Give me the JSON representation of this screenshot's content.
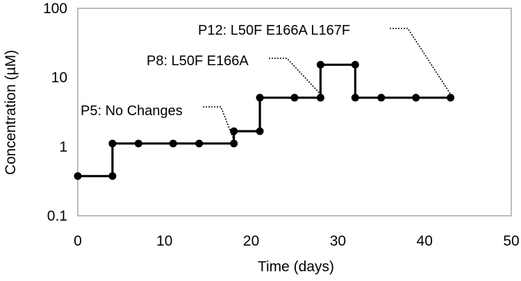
{
  "chart_data": {
    "type": "line",
    "step": true,
    "xlabel": "Time (days)",
    "ylabel": "Concentration (µM)",
    "xlim": [
      0,
      50
    ],
    "ylim": [
      0.1,
      100
    ],
    "yscale": "log",
    "grid": false,
    "xticks": [
      0,
      10,
      20,
      30,
      40,
      50
    ],
    "xtick_labels": [
      "0",
      "10",
      "20",
      "30",
      "40",
      "50"
    ],
    "yticks": [
      0.1,
      1,
      10,
      100
    ],
    "ytick_labels": [
      "0.1",
      "1",
      "10",
      "100"
    ],
    "line_color": "#000000",
    "series": [
      {
        "x": [
          0,
          4,
          4,
          7,
          11,
          14,
          18,
          18,
          21,
          21,
          25,
          28,
          28,
          32,
          32,
          35,
          39,
          43
        ],
        "y": [
          0.375,
          0.375,
          1.11,
          1.11,
          1.11,
          1.11,
          1.11,
          1.67,
          1.67,
          5.1,
          5.1,
          5.1,
          15.3,
          15.3,
          5.1,
          5.1,
          5.1,
          5.1
        ]
      }
    ],
    "annotations": [
      {
        "text": "P5: No Changes",
        "x": 18,
        "y": 1.11
      },
      {
        "text": "P8: L50F E166A",
        "x": 28,
        "y": 5.1
      },
      {
        "text": "P12: L50F E166A L167F",
        "x": 43,
        "y": 5.1
      }
    ]
  }
}
